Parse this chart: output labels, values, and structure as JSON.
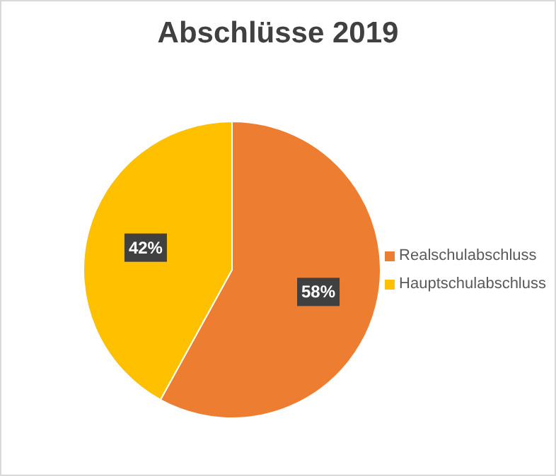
{
  "chart_data": {
    "type": "pie",
    "title": "Abschlüsse 2019",
    "categories": [
      "Realschulabschluss",
      "Hauptschulabschluss"
    ],
    "values": [
      58,
      42
    ],
    "colors": [
      "#ed7d31",
      "#ffc000"
    ],
    "value_labels": [
      "58%",
      "42%"
    ],
    "legend": "right"
  }
}
